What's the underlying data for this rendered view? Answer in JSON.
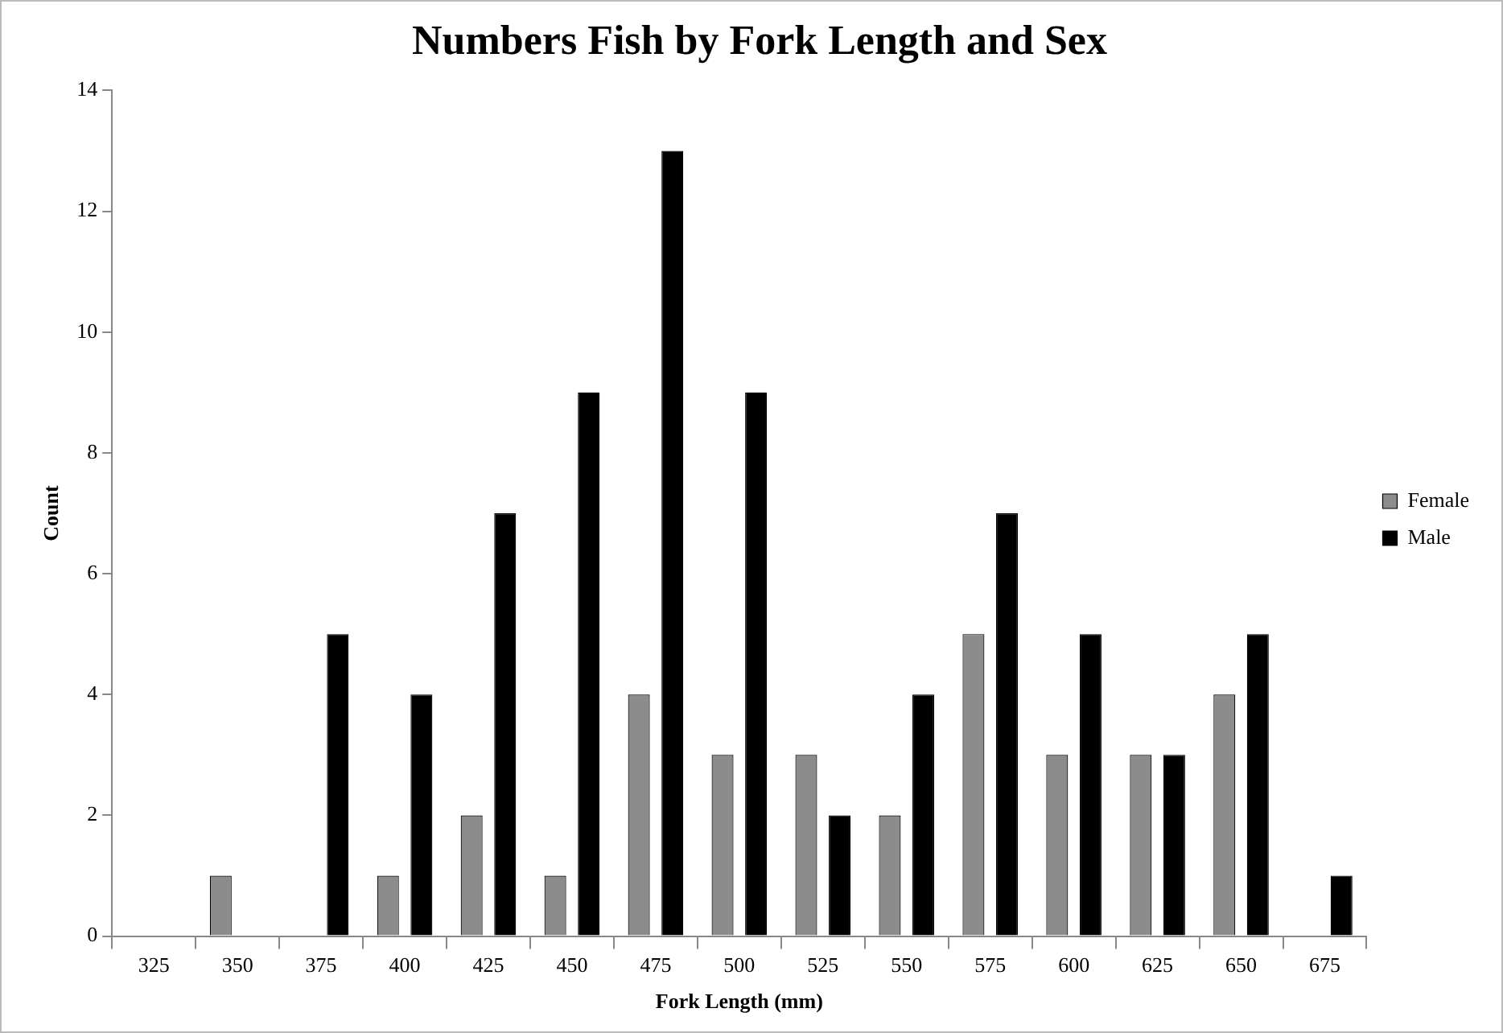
{
  "chart_data": {
    "type": "bar",
    "title": "Numbers Fish by Fork Length and Sex",
    "xlabel": "Fork Length (mm)",
    "ylabel": "Count",
    "categories": [
      "325",
      "350",
      "375",
      "400",
      "425",
      "450",
      "475",
      "500",
      "525",
      "550",
      "575",
      "600",
      "625",
      "650",
      "675"
    ],
    "series": [
      {
        "name": "Female",
        "color": "#8c8c8c",
        "values": [
          0,
          1,
          0,
          1,
          2,
          1,
          4,
          3,
          3,
          2,
          5,
          3,
          3,
          4,
          0
        ]
      },
      {
        "name": "Male",
        "color": "#000000",
        "values": [
          0,
          0,
          5,
          4,
          7,
          9,
          13,
          9,
          2,
          4,
          7,
          5,
          3,
          5,
          1
        ]
      }
    ],
    "ylim": [
      0,
      14
    ],
    "yticks": [
      0,
      2,
      4,
      6,
      8,
      10,
      12,
      14
    ],
    "grid": false,
    "legend": "right"
  }
}
